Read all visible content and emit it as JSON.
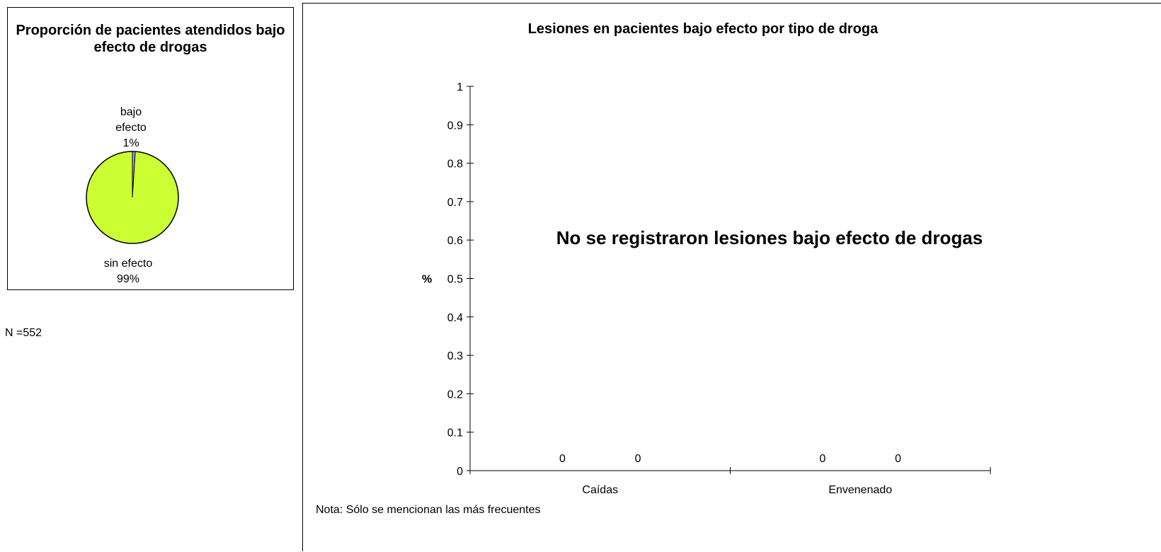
{
  "n_label": "N =552",
  "chart_data": [
    {
      "type": "pie",
      "title": "Proporción de pacientes atendidos bajo efecto de drogas",
      "slices": [
        {
          "name": "bajo efecto",
          "value": 1,
          "label_lines": [
            "bajo",
            "efecto",
            "1%"
          ],
          "color": "#9999ff"
        },
        {
          "name": "sin efecto",
          "value": 99,
          "label_lines": [
            "sin efecto",
            "99%"
          ],
          "color": "#ccff33"
        }
      ]
    },
    {
      "type": "bar",
      "title": "Lesiones en pacientes bajo efecto por tipo de droga",
      "ylabel": "%",
      "ylim": [
        0,
        1
      ],
      "yticks": [
        "0",
        "0.1",
        "0.2",
        "0.3",
        "0.4",
        "0.5",
        "0.6",
        "0.7",
        "0.8",
        "0.9",
        "1"
      ],
      "categories": [
        "Caídas",
        "Envenenado"
      ],
      "series": [
        {
          "values": [
            0,
            0
          ]
        },
        {
          "values": [
            0,
            0
          ]
        }
      ],
      "annotation": "No se registraron lesiones bajo efecto de drogas",
      "note": "Nota: Sólo se mencionan las más frecuentes",
      "grid": false
    }
  ]
}
